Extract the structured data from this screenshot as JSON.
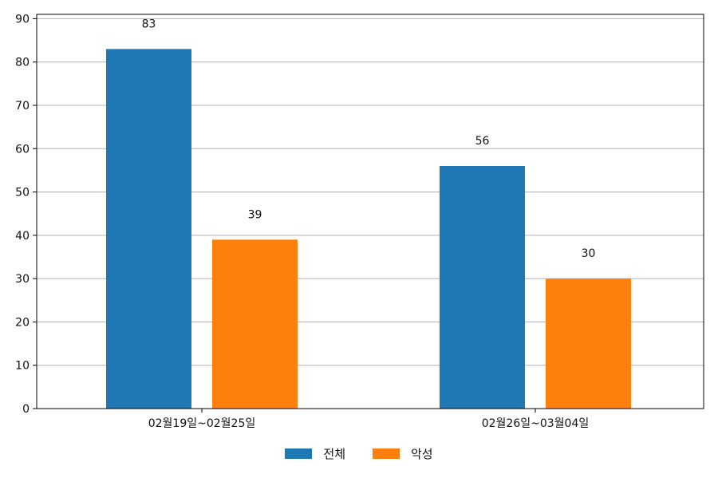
{
  "chart_data": {
    "type": "bar",
    "title": "",
    "xlabel": "",
    "ylabel": "",
    "categories": [
      "02월19일~02월25일",
      "02월26일~03월04일"
    ],
    "series": [
      {
        "name": "전체",
        "values": [
          83,
          56
        ],
        "color": "#1f77b4"
      },
      {
        "name": "악성",
        "values": [
          39,
          30
        ],
        "color": "#ff7f0e"
      }
    ],
    "ylim": [
      0,
      91
    ],
    "yticks": [
      0,
      10,
      20,
      30,
      40,
      50,
      60,
      70,
      80,
      90
    ],
    "grid": true,
    "legend_position": "bottom-center"
  }
}
